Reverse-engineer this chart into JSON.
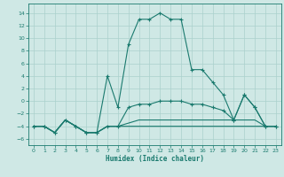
{
  "xlabel": "Humidex (Indice chaleur)",
  "bg_color": "#cfe8e5",
  "grid_color": "#aad0cc",
  "line_color": "#1a7a6e",
  "xlim": [
    -0.5,
    23.5
  ],
  "ylim": [
    -7,
    15.5
  ],
  "xticks": [
    0,
    1,
    2,
    3,
    4,
    5,
    6,
    7,
    8,
    9,
    10,
    11,
    12,
    13,
    14,
    15,
    16,
    17,
    18,
    19,
    20,
    21,
    22,
    23
  ],
  "yticks": [
    -6,
    -4,
    -2,
    0,
    2,
    4,
    6,
    8,
    10,
    12,
    14
  ],
  "series1": [
    [
      0,
      -4
    ],
    [
      1,
      -4
    ],
    [
      2,
      -5
    ],
    [
      3,
      -3
    ],
    [
      4,
      -4
    ],
    [
      5,
      -5
    ],
    [
      6,
      -5
    ],
    [
      7,
      4
    ],
    [
      8,
      -1
    ],
    [
      9,
      9
    ],
    [
      10,
      13
    ],
    [
      11,
      13
    ],
    [
      12,
      14
    ],
    [
      13,
      13
    ],
    [
      14,
      13
    ],
    [
      15,
      5
    ],
    [
      16,
      5
    ],
    [
      17,
      3
    ],
    [
      18,
      1
    ],
    [
      19,
      -3
    ],
    [
      20,
      1
    ],
    [
      21,
      -1
    ],
    [
      22,
      -4
    ],
    [
      23,
      -4
    ]
  ],
  "series2": [
    [
      0,
      -4
    ],
    [
      1,
      -4
    ],
    [
      2,
      -5
    ],
    [
      3,
      -3
    ],
    [
      4,
      -4
    ],
    [
      5,
      -5
    ],
    [
      6,
      -5
    ],
    [
      7,
      -4
    ],
    [
      8,
      -4
    ],
    [
      9,
      -4
    ],
    [
      10,
      -4
    ],
    [
      11,
      -4
    ],
    [
      12,
      -4
    ],
    [
      13,
      -4
    ],
    [
      14,
      -4
    ],
    [
      15,
      -4
    ],
    [
      16,
      -4
    ],
    [
      17,
      -4
    ],
    [
      18,
      -4
    ],
    [
      19,
      -4
    ],
    [
      20,
      -4
    ],
    [
      21,
      -4
    ],
    [
      22,
      -4
    ],
    [
      23,
      -4
    ]
  ],
  "series3": [
    [
      0,
      -4
    ],
    [
      1,
      -4
    ],
    [
      2,
      -5
    ],
    [
      3,
      -3
    ],
    [
      4,
      -4
    ],
    [
      5,
      -5
    ],
    [
      6,
      -5
    ],
    [
      7,
      -4
    ],
    [
      8,
      -4
    ],
    [
      9,
      -3.5
    ],
    [
      10,
      -3
    ],
    [
      11,
      -3
    ],
    [
      12,
      -3
    ],
    [
      13,
      -3
    ],
    [
      14,
      -3
    ],
    [
      15,
      -3
    ],
    [
      16,
      -3
    ],
    [
      17,
      -3
    ],
    [
      18,
      -3
    ],
    [
      19,
      -3
    ],
    [
      20,
      -3
    ],
    [
      21,
      -3
    ],
    [
      22,
      -4
    ],
    [
      23,
      -4
    ]
  ],
  "series4": [
    [
      0,
      -4
    ],
    [
      1,
      -4
    ],
    [
      2,
      -5
    ],
    [
      3,
      -3
    ],
    [
      4,
      -4
    ],
    [
      5,
      -5
    ],
    [
      6,
      -5
    ],
    [
      7,
      -4
    ],
    [
      8,
      -4
    ],
    [
      9,
      -1
    ],
    [
      10,
      -0.5
    ],
    [
      11,
      -0.5
    ],
    [
      12,
      0
    ],
    [
      13,
      0
    ],
    [
      14,
      0
    ],
    [
      15,
      -0.5
    ],
    [
      16,
      -0.5
    ],
    [
      17,
      -1
    ],
    [
      18,
      -1.5
    ],
    [
      19,
      -3
    ],
    [
      20,
      1
    ],
    [
      21,
      -1
    ],
    [
      22,
      -4
    ],
    [
      23,
      -4
    ]
  ]
}
